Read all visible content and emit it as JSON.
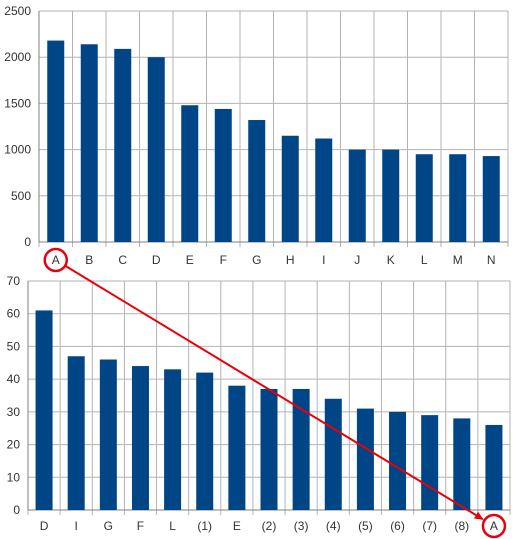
{
  "colors": {
    "bar": "#004586",
    "grid": "#b3b3b3",
    "axis": "#808080",
    "annotation": "#e8000b"
  },
  "chart_data": [
    {
      "type": "bar",
      "categories": [
        "A",
        "B",
        "C",
        "D",
        "E",
        "F",
        "G",
        "H",
        "I",
        "J",
        "K",
        "L",
        "M",
        "N"
      ],
      "values": [
        2180,
        2140,
        2090,
        2000,
        1480,
        1440,
        1320,
        1150,
        1120,
        1000,
        1000,
        950,
        950,
        930
      ],
      "title": "",
      "xlabel": "",
      "ylabel": "",
      "ylim": [
        0,
        2500
      ],
      "yticks": [
        0,
        500,
        1000,
        1500,
        2000,
        2500
      ],
      "grid": true,
      "legend": "none"
    },
    {
      "type": "bar",
      "categories": [
        "D",
        "I",
        "G",
        "F",
        "L",
        "(1)",
        "E",
        "(2)",
        "(3)",
        "(4)",
        "(5)",
        "(6)",
        "(7)",
        "(8)",
        "A"
      ],
      "values": [
        61,
        47,
        46,
        44,
        43,
        42,
        38,
        37,
        37,
        34,
        31,
        30,
        29,
        28,
        26
      ],
      "title": "",
      "xlabel": "",
      "ylabel": "",
      "ylim": [
        0,
        70
      ],
      "yticks": [
        0,
        10,
        20,
        30,
        40,
        50,
        60,
        70
      ],
      "grid": true,
      "legend": "none"
    }
  ],
  "annotations": {
    "highlighted_category": "A",
    "arrow": "from A in the top chart to A in the bottom chart"
  }
}
